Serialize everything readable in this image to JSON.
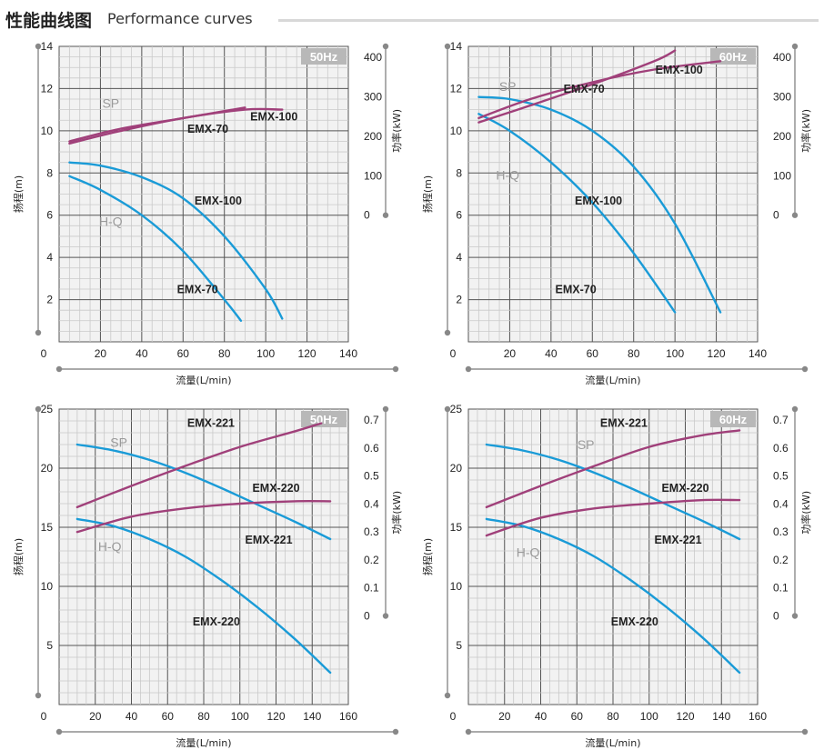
{
  "header": {
    "title_cn": "性能曲线图",
    "title_en": "Performance curves"
  },
  "colors": {
    "hq": "#1a9bd7",
    "sp": "#a0407a",
    "grid_bg": "#f2f2f2"
  },
  "chart_data": [
    {
      "type": "line",
      "freq": "50Hz",
      "xlabel": "流量(L/min)",
      "ylabel": "扬程(m)",
      "y2label": "功率(kW)",
      "xlim": [
        0,
        140
      ],
      "ylim": [
        0,
        14
      ],
      "y2lim": [
        0,
        400
      ],
      "xticks": [
        20,
        40,
        60,
        80,
        100,
        120,
        140
      ],
      "yticks": [
        2,
        4,
        6,
        8,
        10,
        12,
        14
      ],
      "y2ticks": [
        0,
        100,
        200,
        300,
        400
      ],
      "x0label": "0",
      "sp_label": "SP",
      "hq_label": "H-Q",
      "series": [
        {
          "name": "EMX-70",
          "kind": "HQ",
          "x": [
            5,
            20,
            40,
            60,
            80,
            88
          ],
          "y": [
            7.85,
            7.2,
            6.0,
            4.3,
            2.0,
            1.0
          ]
        },
        {
          "name": "EMX-100",
          "kind": "HQ",
          "x": [
            5,
            20,
            40,
            60,
            80,
            100,
            108
          ],
          "y": [
            8.5,
            8.35,
            7.8,
            6.8,
            5.0,
            2.5,
            1.1
          ]
        },
        {
          "name": "EMX-70",
          "kind": "SP",
          "x": [
            5,
            30,
            60,
            90
          ],
          "y": [
            9.5,
            10.1,
            10.6,
            11.1
          ]
        },
        {
          "name": "EMX-100",
          "kind": "SP",
          "x": [
            5,
            30,
            60,
            90,
            108
          ],
          "y": [
            9.4,
            10.0,
            10.6,
            11.0,
            11.0
          ]
        }
      ],
      "labels": [
        {
          "text": "EMX-100",
          "x": 104,
          "y": 10.5
        },
        {
          "text": "EMX-70",
          "x": 72,
          "y": 9.9
        },
        {
          "text": "EMX-100",
          "x": 77,
          "y": 6.5
        },
        {
          "text": "EMX-70",
          "x": 67,
          "y": 2.3
        },
        {
          "text": "SP",
          "x": 25,
          "y": 11.1
        },
        {
          "text": "H-Q",
          "x": 25,
          "y": 5.5
        }
      ]
    },
    {
      "type": "line",
      "freq": "60Hz",
      "xlabel": "流量(L/min)",
      "ylabel": "扬程(m)",
      "y2label": "功率(kW)",
      "xlim": [
        0,
        140
      ],
      "ylim": [
        0,
        14
      ],
      "y2lim": [
        0,
        400
      ],
      "xticks": [
        20,
        40,
        60,
        80,
        100,
        120,
        140
      ],
      "yticks": [
        2,
        4,
        6,
        8,
        10,
        12,
        14
      ],
      "y2ticks": [
        0,
        100,
        200,
        300,
        400
      ],
      "x0label": "0",
      "sp_label": "SP",
      "hq_label": "H-Q",
      "series": [
        {
          "name": "EMX-70",
          "kind": "HQ",
          "x": [
            5,
            20,
            40,
            60,
            80,
            100
          ],
          "y": [
            10.8,
            10.0,
            8.5,
            6.6,
            4.2,
            1.4
          ]
        },
        {
          "name": "EMX-100",
          "kind": "HQ",
          "x": [
            5,
            20,
            40,
            60,
            80,
            100,
            122
          ],
          "y": [
            11.6,
            11.5,
            11.0,
            10.0,
            8.3,
            5.6,
            1.4
          ]
        },
        {
          "name": "EMX-70",
          "kind": "SP",
          "x": [
            5,
            30,
            60,
            90,
            100
          ],
          "y": [
            10.4,
            11.2,
            12.2,
            13.3,
            13.8
          ]
        },
        {
          "name": "EMX-100",
          "kind": "SP",
          "x": [
            5,
            30,
            60,
            90,
            122
          ],
          "y": [
            10.6,
            11.5,
            12.3,
            12.9,
            13.3
          ]
        }
      ],
      "labels": [
        {
          "text": "EMX-100",
          "x": 102,
          "y": 12.7
        },
        {
          "text": "EMX-70",
          "x": 56,
          "y": 11.8
        },
        {
          "text": "EMX-100",
          "x": 63,
          "y": 6.5
        },
        {
          "text": "EMX-70",
          "x": 52,
          "y": 2.3
        },
        {
          "text": "SP",
          "x": 19,
          "y": 11.9
        },
        {
          "text": "H-Q",
          "x": 19,
          "y": 7.7
        }
      ]
    },
    {
      "type": "line",
      "freq": "50Hz",
      "xlabel": "流量(L/min)",
      "ylabel": "扬程(m)",
      "y2label": "功率(kW)",
      "xlim": [
        0,
        160
      ],
      "ylim": [
        0,
        25
      ],
      "y2lim": [
        0,
        0.7
      ],
      "xticks": [
        20,
        40,
        60,
        80,
        100,
        120,
        140,
        160
      ],
      "yticks": [
        5,
        10,
        15,
        20,
        25
      ],
      "y2ticks": [
        0,
        0.1,
        0.2,
        0.3,
        0.4,
        0.5,
        0.6,
        0.7
      ],
      "x0label": "0",
      "sp_label": "SP",
      "hq_label": "H-Q",
      "series": [
        {
          "name": "EMX-221",
          "kind": "HQ",
          "x": [
            10,
            30,
            50,
            70,
            90,
            110,
            130,
            150
          ],
          "y": [
            22.0,
            21.5,
            20.7,
            19.6,
            18.3,
            16.9,
            15.5,
            14.0
          ]
        },
        {
          "name": "EMX-220",
          "kind": "HQ",
          "x": [
            10,
            30,
            50,
            70,
            90,
            110,
            130,
            150
          ],
          "y": [
            15.7,
            15.1,
            14.0,
            12.5,
            10.5,
            8.2,
            5.6,
            2.7
          ]
        },
        {
          "name": "EMX-221",
          "kind": "SP",
          "x": [
            10,
            40,
            70,
            100,
            130,
            145
          ],
          "y": [
            16.7,
            18.5,
            20.2,
            21.8,
            23.1,
            23.8
          ]
        },
        {
          "name": "EMX-220",
          "kind": "SP",
          "x": [
            10,
            40,
            70,
            100,
            130,
            150
          ],
          "y": [
            14.6,
            15.9,
            16.6,
            17.0,
            17.2,
            17.2
          ]
        }
      ],
      "labels": [
        {
          "text": "EMX-221",
          "x": 84,
          "y": 23.5
        },
        {
          "text": "EMX-220",
          "x": 120,
          "y": 18.0
        },
        {
          "text": "EMX-221",
          "x": 116,
          "y": 13.6
        },
        {
          "text": "EMX-220",
          "x": 87,
          "y": 6.7
        },
        {
          "text": "SP",
          "x": 33,
          "y": 21.8
        },
        {
          "text": "H-Q",
          "x": 28,
          "y": 13.0
        }
      ]
    },
    {
      "type": "line",
      "freq": "60Hz",
      "xlabel": "流量(L/min)",
      "ylabel": "扬程(m)",
      "y2label": "功率(kW)",
      "xlim": [
        0,
        160
      ],
      "ylim": [
        0,
        25
      ],
      "y2lim": [
        0,
        0.7
      ],
      "xticks": [
        20,
        40,
        60,
        80,
        100,
        120,
        140,
        160
      ],
      "yticks": [
        5,
        10,
        15,
        20,
        25
      ],
      "y2ticks": [
        0,
        0.1,
        0.2,
        0.3,
        0.4,
        0.5,
        0.6,
        0.7
      ],
      "x0label": "0",
      "sp_label": "SP",
      "hq_label": "H-Q",
      "series": [
        {
          "name": "EMX-221",
          "kind": "HQ",
          "x": [
            10,
            30,
            50,
            70,
            90,
            110,
            130,
            150
          ],
          "y": [
            22.0,
            21.5,
            20.7,
            19.6,
            18.3,
            16.9,
            15.5,
            14.0
          ]
        },
        {
          "name": "EMX-220",
          "kind": "HQ",
          "x": [
            10,
            30,
            50,
            70,
            90,
            110,
            130,
            150
          ],
          "y": [
            15.7,
            15.1,
            14.0,
            12.5,
            10.5,
            8.2,
            5.6,
            2.7
          ]
        },
        {
          "name": "EMX-221",
          "kind": "SP",
          "x": [
            10,
            40,
            70,
            100,
            130,
            150
          ],
          "y": [
            16.7,
            18.5,
            20.2,
            21.8,
            22.8,
            23.2
          ]
        },
        {
          "name": "EMX-220",
          "kind": "SP",
          "x": [
            10,
            40,
            70,
            100,
            130,
            150
          ],
          "y": [
            14.3,
            15.8,
            16.6,
            17.0,
            17.3,
            17.3
          ]
        }
      ],
      "labels": [
        {
          "text": "EMX-221",
          "x": 86,
          "y": 23.5
        },
        {
          "text": "EMX-220",
          "x": 120,
          "y": 18.0
        },
        {
          "text": "EMX-221",
          "x": 116,
          "y": 13.6
        },
        {
          "text": "EMX-220",
          "x": 92,
          "y": 6.7
        },
        {
          "text": "SP",
          "x": 65,
          "y": 21.6
        },
        {
          "text": "H-Q",
          "x": 33,
          "y": 12.5
        }
      ]
    }
  ]
}
